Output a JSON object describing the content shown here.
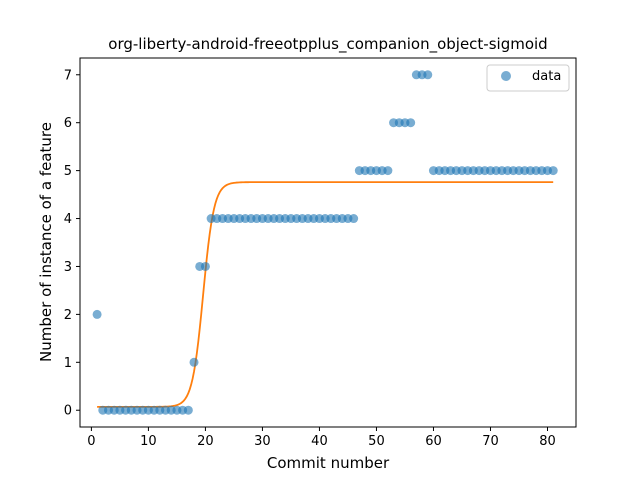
{
  "chart_data": {
    "type": "scatter",
    "title": "org-liberty-android-freeotpplus_companion_object-sigmoid",
    "xlabel": "Commit number",
    "ylabel": "Number of instance of a feature",
    "xlim": [
      -2,
      85
    ],
    "ylim": [
      -0.35,
      7.35
    ],
    "xticks": [
      0,
      10,
      20,
      30,
      40,
      50,
      60,
      70,
      80
    ],
    "yticks": [
      0,
      1,
      2,
      3,
      4,
      5,
      6,
      7
    ],
    "grid": false,
    "legend": {
      "position": "top-right",
      "entries": [
        "data"
      ]
    },
    "series": [
      {
        "name": "data",
        "kind": "scatter",
        "color": "#1f77b4",
        "x": [
          1,
          2,
          3,
          4,
          5,
          6,
          7,
          8,
          9,
          10,
          11,
          12,
          13,
          14,
          15,
          16,
          17,
          18,
          19,
          20,
          21,
          22,
          23,
          24,
          25,
          26,
          27,
          28,
          29,
          30,
          31,
          32,
          33,
          34,
          35,
          36,
          37,
          38,
          39,
          40,
          41,
          42,
          43,
          44,
          45,
          46,
          47,
          48,
          49,
          50,
          51,
          52,
          53,
          54,
          55,
          56,
          57,
          58,
          59,
          60,
          61,
          62,
          63,
          64,
          65,
          66,
          67,
          68,
          69,
          70,
          71,
          72,
          73,
          74,
          75,
          76,
          77,
          78,
          79,
          80,
          81
        ],
        "y": [
          2,
          0,
          0,
          0,
          0,
          0,
          0,
          0,
          0,
          0,
          0,
          0,
          0,
          0,
          0,
          0,
          0,
          1,
          3,
          3,
          4,
          4,
          4,
          4,
          4,
          4,
          4,
          4,
          4,
          4,
          4,
          4,
          4,
          4,
          4,
          4,
          4,
          4,
          4,
          4,
          4,
          4,
          4,
          4,
          4,
          4,
          5,
          5,
          5,
          5,
          5,
          5,
          6,
          6,
          6,
          6,
          7,
          7,
          7,
          5,
          5,
          5,
          5,
          5,
          5,
          5,
          5,
          5,
          5,
          5,
          5,
          5,
          5,
          5,
          5,
          5,
          5,
          5,
          5,
          5,
          5
        ]
      },
      {
        "kind": "line",
        "color": "#ff7f0e",
        "function": "sigmoid",
        "params": {
          "L": 4.69,
          "x0": 19.6,
          "k": 1.05,
          "b": 0.07
        },
        "x_range": [
          1,
          81
        ]
      }
    ]
  }
}
